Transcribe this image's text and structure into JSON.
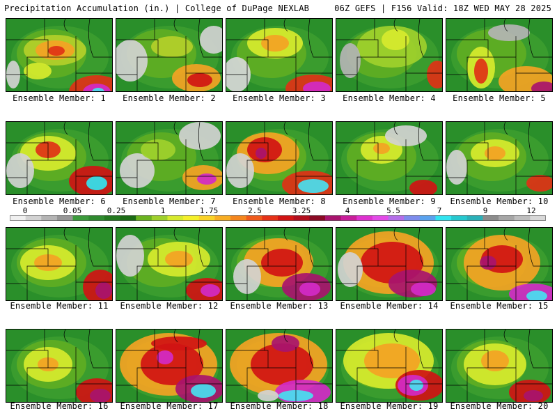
{
  "header": {
    "title": "Precipitation Accumulation (in.) | College of DuPage NEXLAB",
    "run_info": "06Z GEFS | F156 Valid: 18Z WED MAY 28 2025"
  },
  "legend": {
    "labels": [
      "0",
      "0.05",
      "0.25",
      "1",
      "1.75",
      "2.5",
      "3.25",
      "4",
      "5.5",
      "7",
      "9",
      "12"
    ],
    "colors": [
      "#f0f0f0",
      "#d2d2d2",
      "#b4b4b4",
      "#969696",
      "#3c9a3c",
      "#2f8a2f",
      "#23781f",
      "#1a6a14",
      "#6bb320",
      "#9fd02c",
      "#d7ea2e",
      "#f5f02a",
      "#fad228",
      "#f7ad24",
      "#f4861e",
      "#ef5a1c",
      "#e53218",
      "#d01414",
      "#b10e1e",
      "#8a0a24",
      "#a8146e",
      "#c81e9a",
      "#dd32cf",
      "#e24be7",
      "#b46ee8",
      "#7d8cec",
      "#5aa2ee",
      "#32e4f0",
      "#26c8cf",
      "#2ab0b8",
      "#8c8c8c",
      "#a6a6a6",
      "#bebebe",
      "#d8d8d8"
    ]
  },
  "members": [
    {
      "caption": "Ensemble Member: 1"
    },
    {
      "caption": "Ensemble Member: 2"
    },
    {
      "caption": "Ensemble Member: 3"
    },
    {
      "caption": "Ensemble Member: 4"
    },
    {
      "caption": "Ensemble Member: 5"
    },
    {
      "caption": "Ensemble Member: 6"
    },
    {
      "caption": "Ensemble Member: 7"
    },
    {
      "caption": "Ensemble Member: 8"
    },
    {
      "caption": "Ensemble Member: 9"
    },
    {
      "caption": "Ensemble Member: 10"
    },
    {
      "caption": "Ensemble Member: 11"
    },
    {
      "caption": "Ensemble Member: 12"
    },
    {
      "caption": "Ensemble Member: 13"
    },
    {
      "caption": "Ensemble Member: 14"
    },
    {
      "caption": "Ensemble Member: 15"
    },
    {
      "caption": "Ensemble Member: 16"
    },
    {
      "caption": "Ensemble Member: 17"
    },
    {
      "caption": "Ensemble Member: 18"
    },
    {
      "caption": "Ensemble Member: 19"
    },
    {
      "caption": "Ensemble Member: 20"
    }
  ]
}
